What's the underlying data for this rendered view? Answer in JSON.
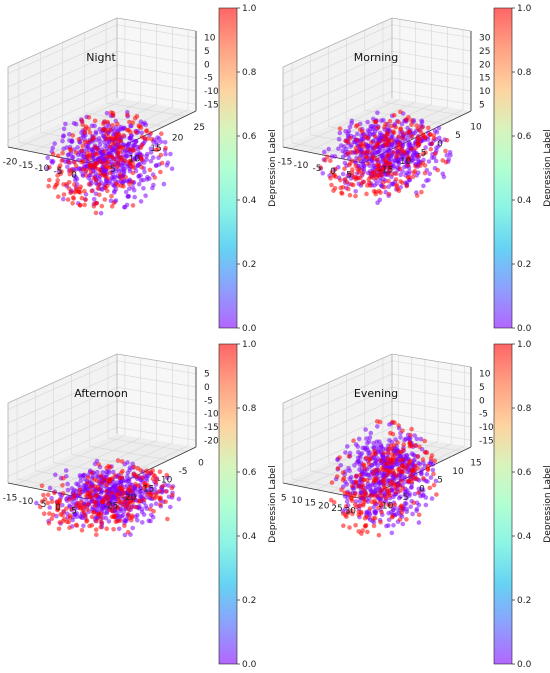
{
  "colors": {
    "purple": "#8000ff",
    "red": "#ff0000",
    "pane": "#f2f2f2",
    "grid": "#d9d9d9",
    "colormap": "rainbow",
    "alpha": 0.55
  },
  "chart_data": [
    {
      "type": "scatter",
      "title": "Night",
      "x_ticks": [
        "-20",
        "-15",
        "-10",
        "-5",
        "0"
      ],
      "y_ticks": [
        "5",
        "10",
        "15",
        "20",
        "25"
      ],
      "z_ticks": [
        "10",
        "5",
        "0",
        "-5",
        "-10",
        "-15"
      ],
      "colorbar": {
        "label": "Depression Label",
        "ticks": [
          "1.0",
          "0.8",
          "0.6",
          "0.4",
          "0.2",
          "0.0"
        ],
        "range": [
          0,
          1
        ]
      },
      "series": [
        {
          "name": "0",
          "color": "#8000ff",
          "approx_points": 520
        },
        {
          "name": "1",
          "color": "#ff0000",
          "approx_points": 230
        }
      ],
      "xlim": [
        -22,
        2
      ],
      "ylim": [
        3,
        27
      ],
      "zlim": [
        -18,
        12
      ],
      "grid": true
    },
    {
      "type": "scatter",
      "title": "Morning",
      "x_ticks": [
        "-15",
        "-10",
        "-5",
        "0",
        "5"
      ],
      "y_ticks": [
        "-15",
        "-10",
        "-5",
        "0",
        "5",
        "10"
      ],
      "z_ticks": [
        "30",
        "25",
        "20",
        "15",
        "10",
        "5"
      ],
      "colorbar": {
        "label": "Depression Label",
        "ticks": [
          "1.0",
          "0.8",
          "0.6",
          "0.4",
          "0.2",
          "0.0"
        ],
        "range": [
          0,
          1
        ]
      },
      "series": [
        {
          "name": "0",
          "color": "#8000ff",
          "approx_points": 520
        },
        {
          "name": "1",
          "color": "#ff0000",
          "approx_points": 230
        }
      ],
      "xlim": [
        -17,
        8
      ],
      "ylim": [
        -17,
        12
      ],
      "zlim": [
        3,
        31
      ],
      "grid": true
    },
    {
      "type": "scatter",
      "title": "Afternoon",
      "x_ticks": [
        "-15",
        "-10",
        "-5",
        "0",
        "5"
      ],
      "y_ticks": [
        "-25",
        "-20",
        "-15",
        "-10",
        "-5",
        "0"
      ],
      "z_ticks": [
        "5",
        "0",
        "-5",
        "-10",
        "-15",
        "-20"
      ],
      "colorbar": {
        "label": "Depression Label",
        "ticks": [
          "1.0",
          "0.8",
          "0.6",
          "0.4",
          "0.2",
          "0.0"
        ],
        "range": [
          0,
          1
        ]
      },
      "series": [
        {
          "name": "0",
          "color": "#8000ff",
          "approx_points": 520
        },
        {
          "name": "1",
          "color": "#ff0000",
          "approx_points": 230
        }
      ],
      "xlim": [
        -17,
        8
      ],
      "ylim": [
        -27,
        2
      ],
      "zlim": [
        -22,
        7
      ],
      "grid": true
    },
    {
      "type": "scatter",
      "title": "Evening",
      "x_ticks": [
        "5",
        "10",
        "15",
        "20",
        "25",
        "30"
      ],
      "y_ticks": [
        "-10",
        "-5",
        "0",
        "5",
        "10",
        "15"
      ],
      "z_ticks": [
        "10",
        "5",
        "0",
        "-5",
        "-10",
        "-15"
      ],
      "colorbar": {
        "label": "Depression Label",
        "ticks": [
          "1.0",
          "0.8",
          "0.6",
          "0.4",
          "0.2",
          "0.0"
        ],
        "range": [
          0,
          1
        ]
      },
      "series": [
        {
          "name": "0",
          "color": "#8000ff",
          "approx_points": 520
        },
        {
          "name": "1",
          "color": "#ff0000",
          "approx_points": 230
        }
      ],
      "xlim": [
        3,
        32
      ],
      "ylim": [
        -12,
        17
      ],
      "zlim": [
        -18,
        13
      ],
      "grid": true
    }
  ]
}
